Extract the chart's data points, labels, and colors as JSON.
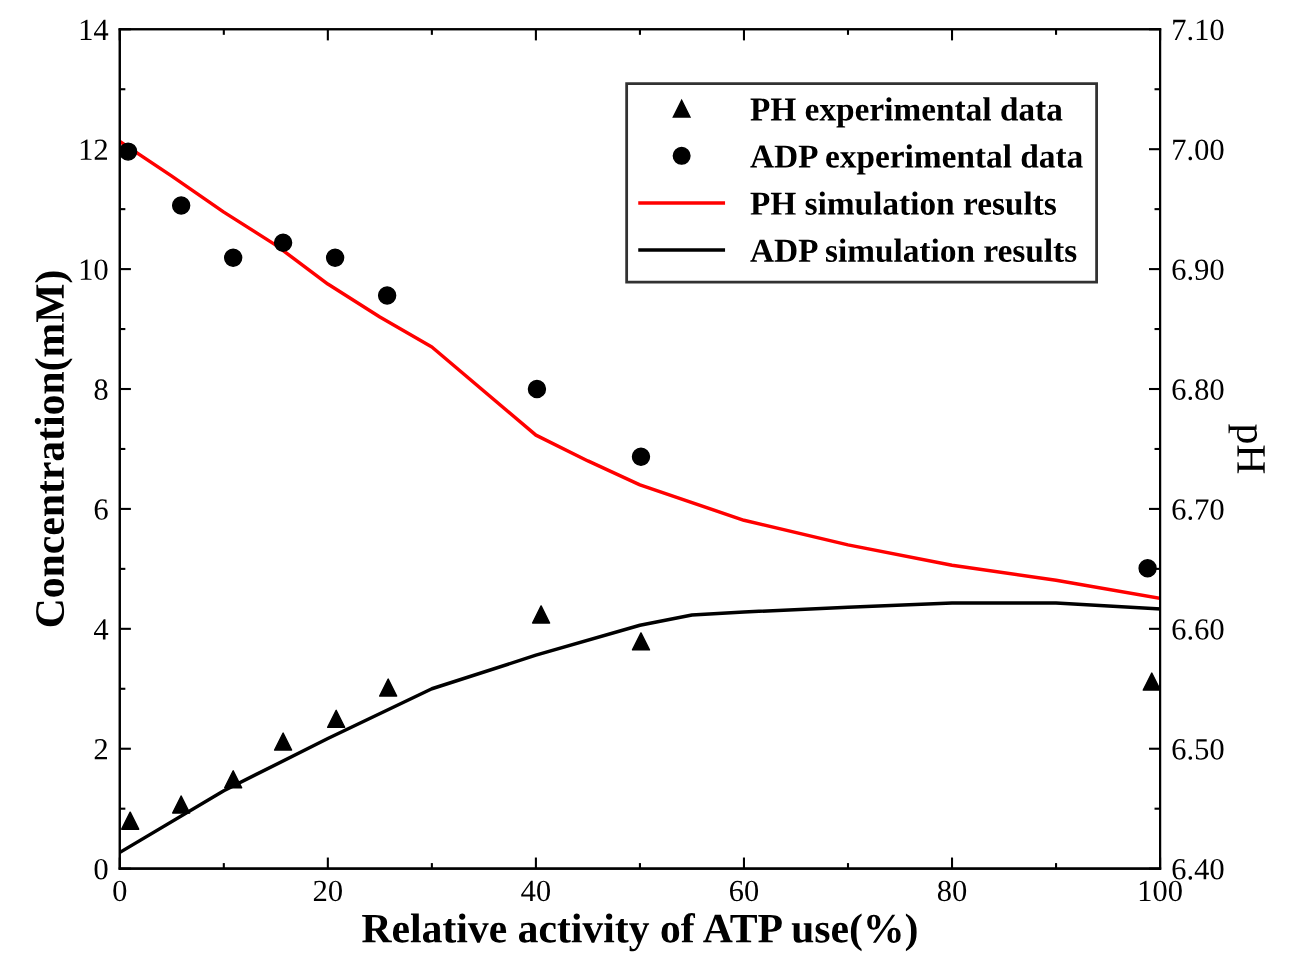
{
  "chart_data": {
    "type": "line",
    "xlabel": "Relative activity of ATP use(%)",
    "ylabel": "Concentration(mM)",
    "y2label": "pH",
    "xlim": [
      0,
      100
    ],
    "xticks": [
      0,
      20,
      40,
      60,
      80,
      100
    ],
    "ylim": [
      0,
      14
    ],
    "yticks": [
      0,
      2,
      4,
      6,
      8,
      10,
      12,
      14
    ],
    "y2lim": [
      6.4,
      7.1
    ],
    "y2ticks": [
      {
        "value": 6.4,
        "label": "6.40"
      },
      {
        "value": 6.5,
        "label": "6.50"
      },
      {
        "value": 6.6,
        "label": "6.60"
      },
      {
        "value": 6.7,
        "label": "6.70"
      },
      {
        "value": 6.8,
        "label": "6.80"
      },
      {
        "value": 6.9,
        "label": "6.90"
      },
      {
        "value": 7.0,
        "label": "7.00"
      },
      {
        "value": 7.1,
        "label": "7.10"
      }
    ],
    "grid": false,
    "legend": "top right",
    "series": [
      {
        "name": "PH experimental data",
        "type": "scatter",
        "marker": "triangle",
        "color": "#000000",
        "x": [
          1,
          5.9,
          10.9,
          15.7,
          20.8,
          25.8,
          40.5,
          50.1,
          99.2
        ],
        "values": [
          0.8,
          1.07,
          1.49,
          2.12,
          2.5,
          3.02,
          4.24,
          3.79,
          3.12
        ]
      },
      {
        "name": "ADP experimental data",
        "type": "scatter",
        "marker": "circle",
        "color": "#000000",
        "x": [
          0.8,
          5.9,
          10.9,
          15.7,
          20.7,
          25.7,
          40.1,
          50.1,
          98.8
        ],
        "values": [
          11.96,
          11.06,
          10.19,
          10.44,
          10.19,
          9.56,
          8.0,
          6.87,
          5.01
        ]
      },
      {
        "name": "PH simulation results",
        "color": "#ff0000",
        "x": [
          0,
          5,
          10,
          15,
          20,
          25,
          30,
          40,
          45,
          50,
          60,
          70,
          80,
          90,
          100
        ],
        "values": [
          12.13,
          11.55,
          10.95,
          10.4,
          9.75,
          9.2,
          8.7,
          7.23,
          6.8,
          6.4,
          5.81,
          5.4,
          5.06,
          4.81,
          4.51
        ]
      },
      {
        "name": "ADP simulation results",
        "color": "#000000",
        "x": [
          0,
          10,
          20,
          30,
          40,
          50,
          55,
          60,
          70,
          80,
          90,
          100
        ],
        "values": [
          0.27,
          1.3,
          2.17,
          3.0,
          3.56,
          4.06,
          4.23,
          4.28,
          4.36,
          4.43,
          4.43,
          4.33
        ]
      }
    ]
  }
}
